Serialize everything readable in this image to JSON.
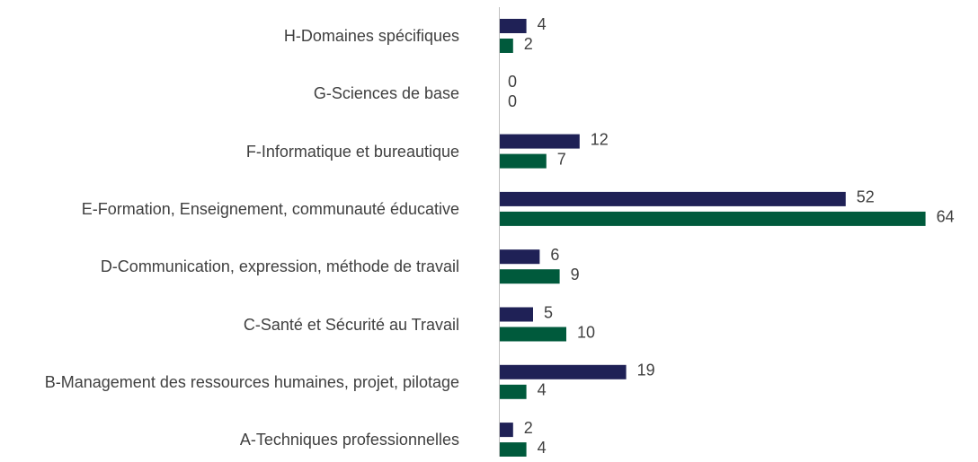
{
  "chart_data": {
    "type": "bar",
    "orientation": "horizontal",
    "categories": [
      "H-Domaines spécifiques",
      "G-Sciences de base",
      "F-Informatique et bureautique",
      "E-Formation, Enseignement, communauté éducative",
      "D-Communication, expression, méthode de travail",
      "C-Santé et Sécurité au Travail",
      "B-Management des ressources humaines, projet, pilotage",
      "A-Techniques professionnelles"
    ],
    "series": [
      {
        "color": "#1f2156",
        "values": [
          4,
          0,
          12,
          52,
          6,
          5,
          19,
          2
        ]
      },
      {
        "color": "#005a3c",
        "values": [
          2,
          0,
          7,
          64,
          9,
          10,
          4,
          4
        ]
      }
    ]
  }
}
